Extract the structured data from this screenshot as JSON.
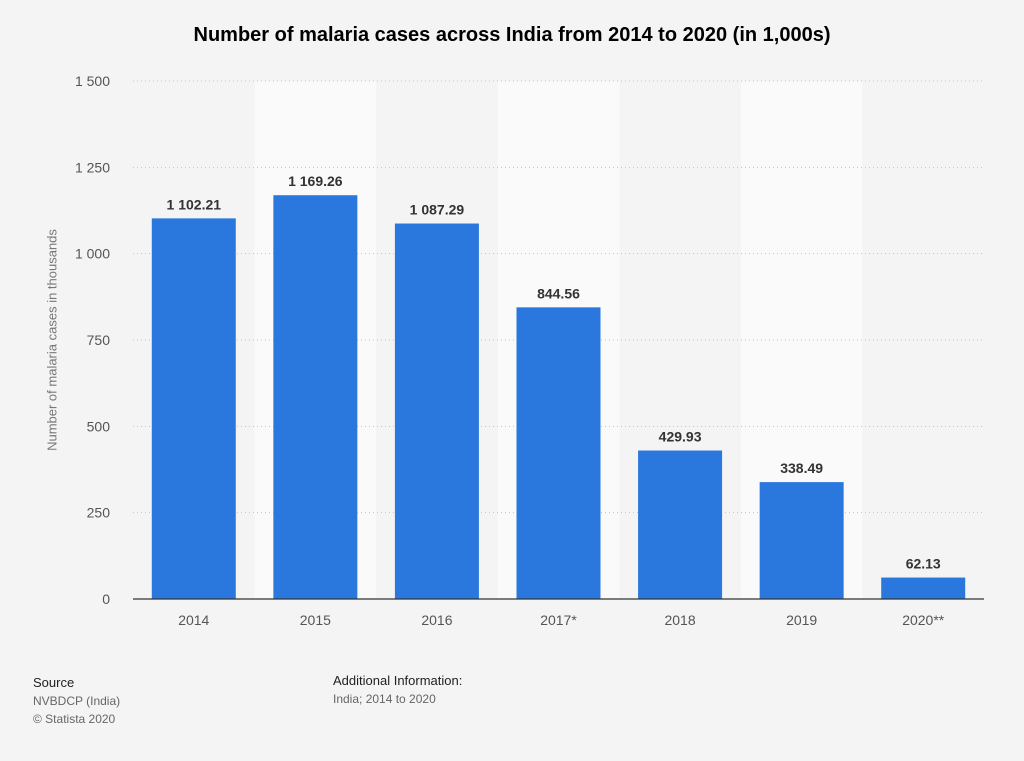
{
  "title": "Number of malaria cases across India from 2014 to 2020 (in 1,000s)",
  "chart_data": {
    "type": "bar",
    "title": "Number of malaria cases across India from 2014 to 2020 (in 1,000s)",
    "xlabel": "",
    "ylabel": "Number of malaria cases in thousands",
    "categories": [
      "2014",
      "2015",
      "2016",
      "2017*",
      "2018",
      "2019",
      "2020**"
    ],
    "values": [
      1102.21,
      1169.26,
      1087.29,
      844.56,
      429.93,
      338.49,
      62.13
    ],
    "value_labels": [
      "1 102.21",
      "1 169.26",
      "1 087.29",
      "844.56",
      "429.93",
      "338.49",
      "62.13"
    ],
    "ylim": [
      0,
      1500
    ],
    "yticks": [
      0,
      250,
      500,
      750,
      1000,
      1250,
      1500
    ],
    "ytick_labels": [
      "0",
      "250",
      "500",
      "750",
      "1 000",
      "1 250",
      "1 500"
    ],
    "grid": true,
    "bar_color": "#2a78dd",
    "band_color": "#fafafa"
  },
  "footer": {
    "source_heading": "Source",
    "source_text": "NVBDCP (India)",
    "copyright": "© Statista 2020",
    "additional_heading": "Additional Information:",
    "additional_text": "India; 2014 to 2020"
  }
}
